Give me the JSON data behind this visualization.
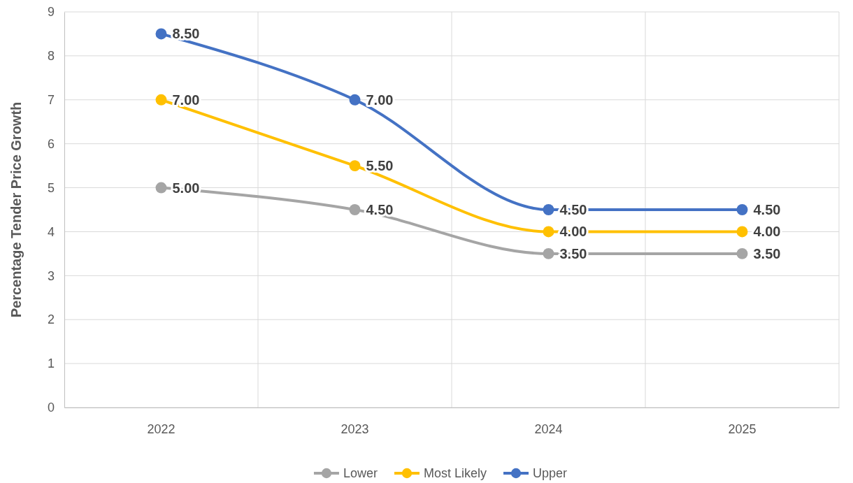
{
  "chart_data": {
    "type": "line",
    "ylabel": "Percentage Tender Price Growth",
    "categories": [
      "2022",
      "2023",
      "2024",
      "2025"
    ],
    "series": [
      {
        "name": "Lower",
        "color": "#a5a5a5",
        "values": [
          5.0,
          4.5,
          3.5,
          3.5
        ],
        "value_labels": [
          "5.00",
          "4.50",
          "3.50",
          "3.50"
        ]
      },
      {
        "name": "Most Likely",
        "color": "#ffc000",
        "values": [
          7.0,
          5.5,
          4.0,
          4.0
        ],
        "value_labels": [
          "7.00",
          "5.50",
          "4.00",
          "4.00"
        ]
      },
      {
        "name": "Upper",
        "color": "#4472c4",
        "values": [
          8.5,
          7.0,
          4.5,
          4.5
        ],
        "value_labels": [
          "8.50",
          "7.00",
          "4.50",
          "4.50"
        ]
      }
    ],
    "ylim": [
      0,
      9
    ],
    "yticks": [
      0,
      1,
      2,
      3,
      4,
      5,
      6,
      7,
      8,
      9
    ],
    "grid": true,
    "legend": "bottom",
    "marker": "circle",
    "line_style": "solid"
  }
}
